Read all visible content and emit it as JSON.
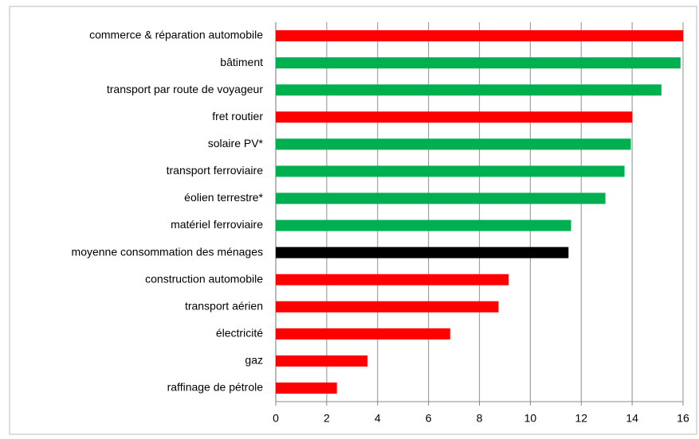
{
  "chart_data": {
    "type": "barh",
    "categories": [
      "commerce & réparation automobile",
      "bâtiment",
      "transport par route de voyageur",
      "fret routier",
      "solaire PV*",
      "transport ferroviaire",
      "éolien terrestre*",
      "matériel ferroviaire",
      "moyenne consommation des ménages",
      "construction automobile",
      "transport aérien",
      "électricité",
      "gaz",
      "raffinage de pétrole"
    ],
    "values": [
      16.0,
      15.9,
      15.15,
      14.0,
      13.95,
      13.7,
      12.95,
      11.6,
      11.5,
      9.15,
      8.75,
      6.85,
      3.6,
      2.4
    ],
    "colors": [
      "#ff0000",
      "#00b050",
      "#00b050",
      "#ff0000",
      "#00b050",
      "#00b050",
      "#00b050",
      "#00b050",
      "#000000",
      "#ff0000",
      "#ff0000",
      "#ff0000",
      "#ff0000",
      "#ff0000"
    ],
    "xlim": [
      0,
      16
    ],
    "xticks": [
      0,
      2,
      4,
      6,
      8,
      10,
      12,
      14,
      16
    ],
    "grid": true
  }
}
